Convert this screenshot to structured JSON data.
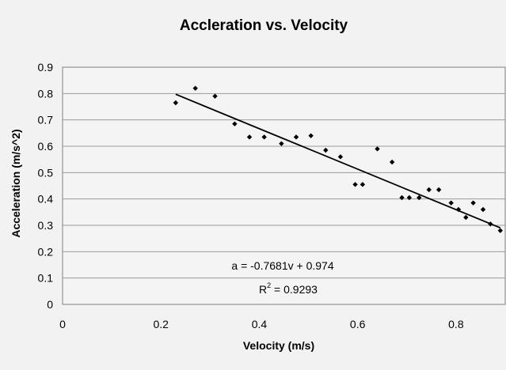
{
  "chart_data": {
    "type": "scatter",
    "title": "Accleration vs. Velocity",
    "xlabel": "Velocity  (m/s)",
    "ylabel": "Acceleration  (m/s^2)",
    "xlim": [
      0,
      0.9
    ],
    "ylim": [
      0,
      0.9
    ],
    "x_ticks": [
      0,
      0.2,
      0.4,
      0.6,
      0.8
    ],
    "x_tick_labels": [
      "0",
      "0.2",
      "0.4",
      "0.6",
      "0.8"
    ],
    "y_ticks": [
      0,
      0.1,
      0.2,
      0.3,
      0.4,
      0.5,
      0.6,
      0.7,
      0.8,
      0.9
    ],
    "y_tick_labels": [
      "0",
      "0.1",
      "0.2",
      "0.3",
      "0.4",
      "0.5",
      "0.6",
      "0.7",
      "0.8",
      "0.9"
    ],
    "grid": true,
    "legend": "none",
    "marker": "diamond",
    "marker_color": "#000000",
    "points": [
      {
        "x": 0.23,
        "y": 0.765
      },
      {
        "x": 0.27,
        "y": 0.82
      },
      {
        "x": 0.31,
        "y": 0.79
      },
      {
        "x": 0.35,
        "y": 0.685
      },
      {
        "x": 0.38,
        "y": 0.635
      },
      {
        "x": 0.41,
        "y": 0.635
      },
      {
        "x": 0.445,
        "y": 0.61
      },
      {
        "x": 0.475,
        "y": 0.635
      },
      {
        "x": 0.505,
        "y": 0.64
      },
      {
        "x": 0.535,
        "y": 0.585
      },
      {
        "x": 0.565,
        "y": 0.56
      },
      {
        "x": 0.595,
        "y": 0.455
      },
      {
        "x": 0.61,
        "y": 0.455
      },
      {
        "x": 0.64,
        "y": 0.59
      },
      {
        "x": 0.67,
        "y": 0.54
      },
      {
        "x": 0.69,
        "y": 0.405
      },
      {
        "x": 0.705,
        "y": 0.405
      },
      {
        "x": 0.725,
        "y": 0.405
      },
      {
        "x": 0.745,
        "y": 0.435
      },
      {
        "x": 0.765,
        "y": 0.435
      },
      {
        "x": 0.79,
        "y": 0.385
      },
      {
        "x": 0.805,
        "y": 0.36
      },
      {
        "x": 0.82,
        "y": 0.33
      },
      {
        "x": 0.835,
        "y": 0.385
      },
      {
        "x": 0.855,
        "y": 0.36
      },
      {
        "x": 0.87,
        "y": 0.305
      },
      {
        "x": 0.89,
        "y": 0.28
      }
    ],
    "trendline": {
      "type": "linear",
      "slope": -0.7681,
      "intercept": 0.974,
      "x_start": 0.23,
      "x_end": 0.89
    },
    "equation_label": "a = -0.7681v + 0.974",
    "r2_label_prefix": "R",
    "r2_label_exponent": "2",
    "r2_label_value": " = 0.9293"
  }
}
